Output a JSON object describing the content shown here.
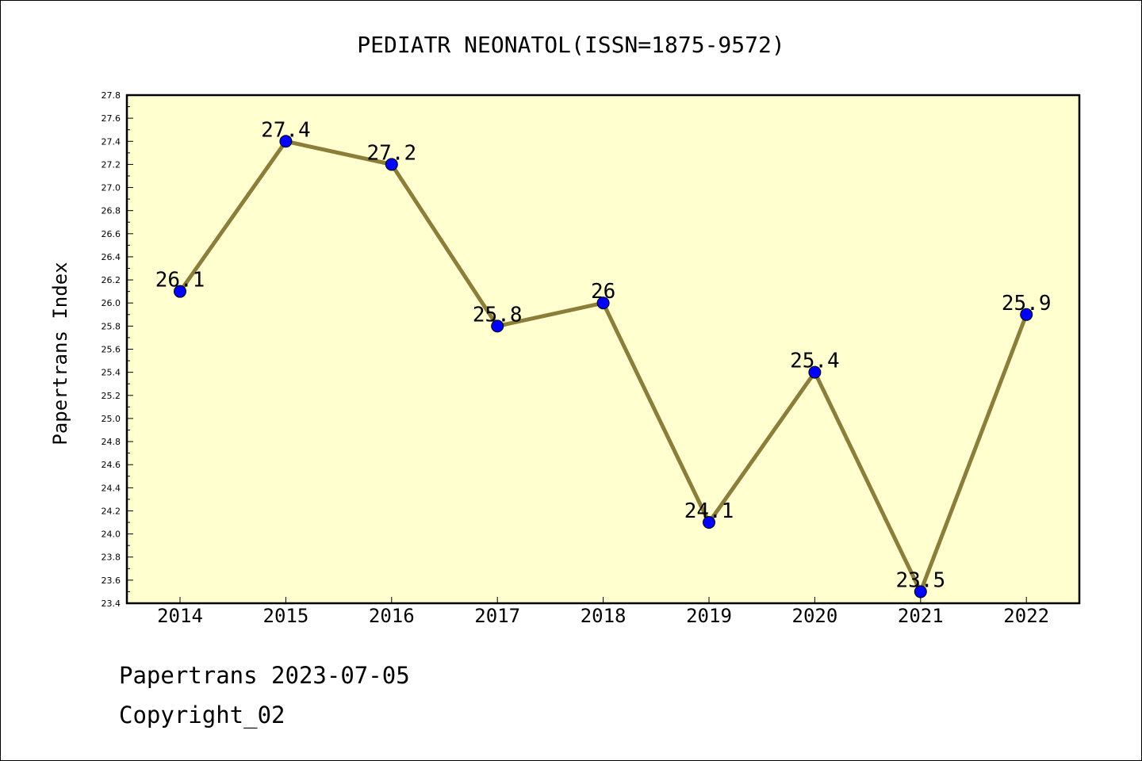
{
  "chart_data": {
    "type": "line",
    "title": "PEDIATR NEONATOL(ISSN=1875-9572)",
    "xlabel": "",
    "ylabel": "Papertrans Index",
    "categories": [
      "2014",
      "2015",
      "2016",
      "2017",
      "2018",
      "2019",
      "2020",
      "2021",
      "2022"
    ],
    "values": [
      26.1,
      27.4,
      27.2,
      25.8,
      26.0,
      24.1,
      25.4,
      23.5,
      25.9
    ],
    "data_labels": [
      "26.1",
      "27.4",
      "27.2",
      "25.8",
      "26",
      "24.1",
      "25.4",
      "23.5",
      "25.9"
    ],
    "ylim": [
      23.4,
      27.8
    ],
    "ytick_step": 0.2,
    "grid": false,
    "colors": {
      "plot_background": "#ffffd0",
      "line": "#8b7d3a",
      "marker": "#0000ff"
    }
  },
  "footer": {
    "line1": "Papertrans 2023-07-05",
    "line2": "Copyright_02"
  }
}
